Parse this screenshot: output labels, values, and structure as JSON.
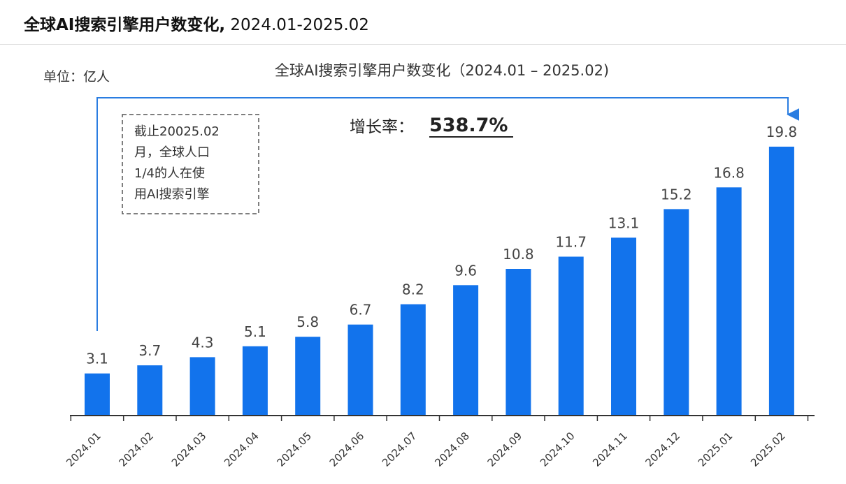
{
  "header": {
    "title": "全球AI搜索引擎用户数变化,",
    "range": " 2024.01-2025.02"
  },
  "colors": {
    "bar": "#1273ec",
    "arrow": "#2a7de1",
    "axis": "#333333"
  },
  "chart_data": {
    "type": "bar",
    "title": "全球AI搜索引擎用户数变化（2024.01 – 2025.02)",
    "unit_label": "单位：亿人",
    "categories": [
      "2024.01",
      "2024.02",
      "2024.03",
      "2024.04",
      "2024.05",
      "2024.06",
      "2024.07",
      "2024.08",
      "2024.09",
      "2024.10",
      "2024.11",
      "2024.12",
      "2025.01",
      "2025.02"
    ],
    "values": [
      3.1,
      3.7,
      4.3,
      5.1,
      5.8,
      6.7,
      8.2,
      9.6,
      10.8,
      11.7,
      13.1,
      15.2,
      16.8,
      19.8
    ],
    "ylim": [
      0,
      21
    ],
    "grid": false,
    "legend": "none",
    "annotations": {
      "growth_label": "增长率：",
      "growth_value": "538.7%",
      "note_lines": [
        "截止20025.02",
        "月，全球人口",
        "1/4的人在使",
        "用AI搜索引擎"
      ]
    }
  }
}
